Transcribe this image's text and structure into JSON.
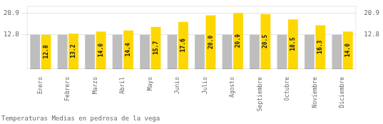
{
  "chart_data": {
    "type": "bar",
    "title": "Temperaturas Medias en pedrosa de la vega",
    "categories": [
      "Enero",
      "Febrero",
      "Marzo",
      "Abril",
      "Mayo",
      "Junio",
      "Julio",
      "Agosto",
      "Septiembre",
      "Octubre",
      "Noviembre",
      "Diciembre"
    ],
    "series": [
      {
        "color": "#BEBEBE",
        "values": [
          12.8,
          12.8,
          12.8,
          12.8,
          12.8,
          12.8,
          12.8,
          12.8,
          12.8,
          12.8,
          12.8,
          12.8
        ]
      },
      {
        "color": "#FFD700",
        "values": [
          12.8,
          13.2,
          14.0,
          14.4,
          15.7,
          17.6,
          20.0,
          20.9,
          20.5,
          18.5,
          16.3,
          14.0
        ],
        "value_labels": [
          "12.8",
          "13.2",
          "14.0",
          "14.4",
          "15.7",
          "17.6",
          "20.0",
          "20.9",
          "20.5",
          "18.5",
          "16.3",
          "14.0"
        ],
        "data_labels": true
      }
    ],
    "ylim": [
      0,
      23.5
    ],
    "yticks": [
      12.8,
      20.9
    ],
    "y2lim": [
      0,
      23.5
    ],
    "y2ticks": [
      12.8,
      20.9
    ],
    "grid": true
  }
}
